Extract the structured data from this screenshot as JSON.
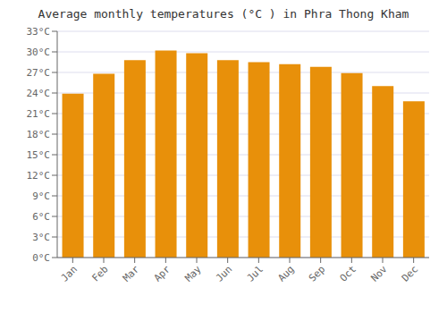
{
  "chart_data": {
    "type": "bar",
    "title": "Average monthly temperatures (°C ) in Phra Thong Kham",
    "categories": [
      "Jan",
      "Feb",
      "Mar",
      "Apr",
      "May",
      "Jun",
      "Jul",
      "Aug",
      "Sep",
      "Oct",
      "Nov",
      "Dec"
    ],
    "values": [
      23.9,
      26.8,
      28.8,
      30.2,
      29.8,
      28.8,
      28.5,
      28.2,
      27.8,
      26.9,
      25.0,
      22.8
    ],
    "color": "#E8900A",
    "ylim": [
      0,
      33
    ],
    "yticks": [
      {
        "value": 0,
        "label": "0°C"
      },
      {
        "value": 3,
        "label": "3°C"
      },
      {
        "value": 6,
        "label": "6°C"
      },
      {
        "value": 9,
        "label": "9°C"
      },
      {
        "value": 12,
        "label": "12°C"
      },
      {
        "value": 15,
        "label": "15°C"
      },
      {
        "value": 18,
        "label": "18°C"
      },
      {
        "value": 21,
        "label": "21°C"
      },
      {
        "value": 24,
        "label": "24°C"
      },
      {
        "value": 27,
        "label": "27°C"
      },
      {
        "value": 30,
        "label": "30°C"
      },
      {
        "value": 33,
        "label": "33°C"
      }
    ],
    "grid": true
  }
}
